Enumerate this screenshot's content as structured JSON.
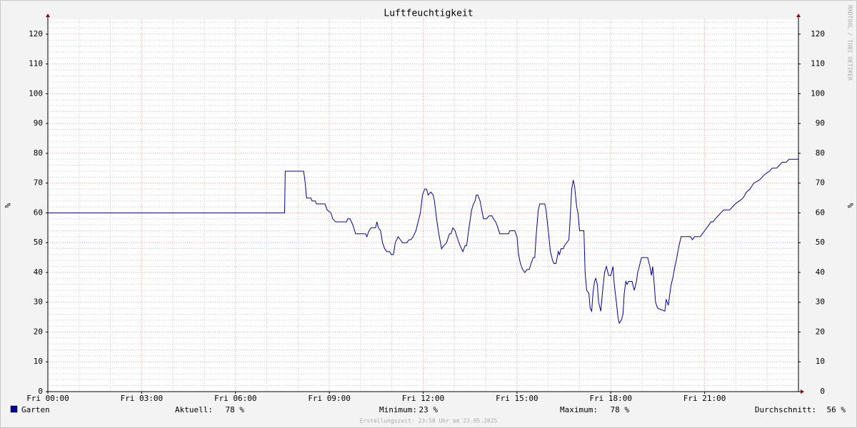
{
  "chart_data": {
    "type": "line",
    "title": "Luftfeuchtigkeit",
    "ylabel": "%",
    "y2label": "%",
    "watermark": "RRDTOOL / TOBI OETIKER",
    "footer": "Erstellungszeit: 23:58 Uhr am 23.05.2025",
    "stats": [
      {
        "label": "Aktuell:",
        "value": "78 %"
      },
      {
        "label": "Minimum:",
        "value": "23 %"
      },
      {
        "label": "Maximum:",
        "value": "78 %"
      },
      {
        "label": "Durchschnitt:",
        "value": "56 %"
      }
    ],
    "xlim": [
      0,
      24
    ],
    "xticks": [
      {
        "value": 0,
        "label": "Fri 00:00"
      },
      {
        "value": 3,
        "label": "Fri 03:00"
      },
      {
        "value": 6,
        "label": "Fri 06:00"
      },
      {
        "value": 9,
        "label": "Fri 09:00"
      },
      {
        "value": 12,
        "label": "Fri 12:00"
      },
      {
        "value": 15,
        "label": "Fri 15:00"
      },
      {
        "value": 18,
        "label": "Fri 18:00"
      },
      {
        "value": 21,
        "label": "Fri 21:00"
      }
    ],
    "xminorticks": [
      1,
      2,
      4,
      5,
      7,
      8,
      10,
      11,
      13,
      14,
      16,
      17,
      19,
      20,
      22,
      23,
      24
    ],
    "ylim": [
      0,
      125
    ],
    "yticks": [
      0,
      10,
      20,
      30,
      40,
      50,
      60,
      70,
      80,
      90,
      100,
      110,
      120
    ],
    "yminorticks": [
      2,
      4,
      6,
      8,
      12,
      14,
      16,
      18,
      22,
      24,
      26,
      28,
      32,
      34,
      36,
      38,
      42,
      44,
      46,
      48,
      52,
      54,
      56,
      58,
      62,
      64,
      66,
      68,
      72,
      74,
      76,
      78,
      82,
      84,
      86,
      88,
      92,
      94,
      96,
      98,
      102,
      104,
      106,
      108,
      112,
      114,
      116,
      118,
      122,
      124
    ],
    "grid": true,
    "series": [
      {
        "name": "Garten",
        "color": "#0000a0",
        "x": [
          0,
          7.57,
          7.59,
          8.18,
          8.23,
          8.27,
          8.41,
          8.45,
          8.55,
          8.59,
          8.86,
          8.93,
          9.05,
          9.11,
          9.2,
          9.55,
          9.59,
          9.66,
          9.75,
          9.84,
          10.16,
          10.2,
          10.27,
          10.34,
          10.48,
          10.52,
          10.57,
          10.64,
          10.7,
          10.77,
          10.84,
          10.93,
          10.98,
          11.05,
          11.11,
          11.2,
          11.27,
          11.34,
          11.48,
          11.55,
          11.61,
          11.68,
          11.77,
          11.84,
          11.91,
          11.98,
          12.05,
          12.11,
          12.16,
          12.25,
          12.32,
          12.36,
          12.43,
          12.5,
          12.59,
          12.66,
          12.75,
          12.84,
          12.89,
          12.95,
          13.02,
          13.11,
          13.18,
          13.27,
          13.34,
          13.39,
          13.48,
          13.55,
          13.61,
          13.66,
          13.7,
          13.75,
          13.82,
          13.89,
          13.93,
          14.02,
          14.11,
          14.2,
          14.25,
          14.32,
          14.39,
          14.45,
          14.73,
          14.77,
          14.93,
          15,
          15.05,
          15.11,
          15.18,
          15.25,
          15.32,
          15.39,
          15.45,
          15.52,
          15.57,
          15.61,
          15.68,
          15.73,
          15.89,
          15.93,
          16,
          16.07,
          16.14,
          16.18,
          16.25,
          16.32,
          16.36,
          16.41,
          16.48,
          16.52,
          16.59,
          16.66,
          16.7,
          16.75,
          16.8,
          16.84,
          16.91,
          16.95,
          17,
          17.14,
          17.18,
          17.23,
          17.3,
          17.34,
          17.39,
          17.43,
          17.48,
          17.52,
          17.57,
          17.61,
          17.68,
          17.75,
          17.8,
          17.86,
          17.93,
          18,
          18.07,
          18.11,
          18.18,
          18.23,
          18.27,
          18.34,
          18.39,
          18.43,
          18.48,
          18.52,
          18.57,
          18.68,
          18.75,
          18.82,
          18.86,
          18.91,
          18.98,
          19.18,
          19.25,
          19.3,
          19.34,
          19.39,
          19.43,
          19.5,
          19.73,
          19.77,
          19.84,
          19.89,
          19.93,
          19.98,
          20.05,
          20.11,
          20.18,
          20.25,
          20.55,
          20.61,
          20.68,
          20.86,
          20.93,
          21,
          21.07,
          21.14,
          21.2,
          21.27,
          21.34,
          21.43,
          21.52,
          21.61,
          21.8,
          21.89,
          21.98,
          22.11,
          22.23,
          22.34,
          22.45,
          22.57,
          22.75,
          22.84,
          22.93,
          23.07,
          23.16,
          23.3,
          23.39,
          23.48,
          23.61,
          23.7,
          24
        ],
        "values": [
          60,
          60,
          74,
          74,
          70,
          65,
          65,
          64,
          64,
          63,
          63,
          61,
          60,
          58,
          57,
          57,
          58,
          58,
          56,
          53,
          53,
          52,
          54,
          55,
          55,
          57,
          55,
          54,
          50,
          48,
          47,
          47,
          46,
          46,
          50,
          52,
          51,
          50,
          50,
          51,
          51,
          52,
          54,
          57,
          60,
          66,
          68,
          68,
          66,
          67,
          66,
          64,
          58,
          53,
          48,
          49,
          50,
          53,
          53,
          55,
          54,
          51,
          49,
          47,
          49,
          49,
          56,
          61,
          63,
          64,
          66,
          66,
          64,
          60,
          58,
          58,
          59,
          59,
          58,
          57,
          55,
          53,
          53,
          54,
          54,
          52,
          46,
          43,
          41,
          40,
          41,
          41,
          43,
          45,
          45,
          52,
          61,
          63,
          63,
          61,
          54,
          47,
          44,
          43,
          43,
          47,
          46,
          48,
          48,
          49,
          50,
          51,
          58,
          68,
          71,
          69,
          62,
          60,
          54,
          54,
          40,
          34,
          33,
          28,
          27,
          33,
          37,
          38,
          36,
          30,
          27,
          35,
          40,
          42,
          39,
          39,
          42,
          36,
          30,
          25,
          23,
          24,
          26,
          33,
          37,
          36,
          37,
          37,
          34,
          37,
          40,
          42,
          45,
          45,
          42,
          39,
          42,
          36,
          30,
          28,
          27,
          31,
          29,
          33,
          36,
          38,
          42,
          45,
          49,
          52,
          52,
          51,
          52,
          52,
          53,
          54,
          55,
          56,
          57,
          57,
          58,
          59,
          60,
          61,
          61,
          62,
          63,
          64,
          65,
          67,
          68,
          70,
          71,
          72,
          73,
          74,
          75,
          75,
          76,
          77,
          77,
          78,
          78
        ]
      }
    ]
  }
}
